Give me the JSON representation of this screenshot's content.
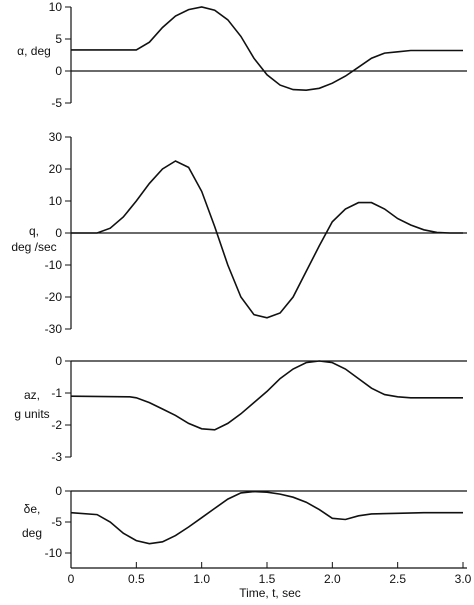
{
  "chart_data": [
    {
      "type": "line",
      "ylabel_lines": [
        "α, deg"
      ],
      "ylim": [
        -5,
        10
      ],
      "yticks": [
        10,
        5,
        0,
        -5
      ],
      "zero_line": 0,
      "series": [
        {
          "x": [
            0,
            0.3,
            0.5,
            0.6,
            0.7,
            0.8,
            0.9,
            1.0,
            1.1,
            1.2,
            1.3,
            1.4,
            1.5,
            1.6,
            1.7,
            1.8,
            1.9,
            2.0,
            2.1,
            2.2,
            2.3,
            2.4,
            2.5,
            2.6,
            2.8,
            3.0
          ],
          "y": [
            3.3,
            3.3,
            3.3,
            4.5,
            6.8,
            8.6,
            9.6,
            10.0,
            9.5,
            8.0,
            5.4,
            2.0,
            -0.6,
            -2.2,
            -2.9,
            -3.0,
            -2.7,
            -1.9,
            -0.8,
            0.6,
            2.0,
            2.8,
            3.0,
            3.2,
            3.2,
            3.2
          ]
        }
      ]
    },
    {
      "type": "line",
      "ylabel_lines": [
        "q,",
        "deg /sec"
      ],
      "ylim": [
        -30,
        30
      ],
      "yticks": [
        30,
        20,
        10,
        0,
        -10,
        -20,
        -30
      ],
      "zero_line": 0,
      "series": [
        {
          "x": [
            0,
            0.2,
            0.3,
            0.4,
            0.5,
            0.6,
            0.7,
            0.8,
            0.9,
            1.0,
            1.1,
            1.2,
            1.3,
            1.4,
            1.5,
            1.6,
            1.7,
            1.8,
            1.9,
            2.0,
            2.1,
            2.2,
            2.3,
            2.4,
            2.5,
            2.6,
            2.7,
            2.8,
            2.9,
            3.0
          ],
          "y": [
            0,
            0,
            1.5,
            5,
            10,
            15.5,
            20,
            22.5,
            20.5,
            13,
            2,
            -10,
            -20,
            -25.5,
            -26.5,
            -25,
            -20,
            -12,
            -4,
            3.5,
            7.5,
            9.5,
            9.5,
            7.5,
            4.5,
            2.5,
            1,
            0.2,
            0,
            0
          ]
        }
      ]
    },
    {
      "type": "line",
      "ylabel_lines": [
        "az,",
        "g units"
      ],
      "ylim": [
        -3,
        0
      ],
      "yticks": [
        0,
        -1,
        -2,
        -3
      ],
      "zero_line": 0,
      "series": [
        {
          "x": [
            0,
            0.45,
            0.5,
            0.6,
            0.7,
            0.8,
            0.9,
            1.0,
            1.1,
            1.2,
            1.3,
            1.4,
            1.5,
            1.6,
            1.7,
            1.8,
            1.9,
            2.0,
            2.1,
            2.2,
            2.3,
            2.4,
            2.5,
            2.6,
            2.8,
            3.0
          ],
          "y": [
            -1.1,
            -1.12,
            -1.15,
            -1.3,
            -1.5,
            -1.7,
            -1.95,
            -2.12,
            -2.15,
            -1.95,
            -1.65,
            -1.3,
            -0.95,
            -0.55,
            -0.25,
            -0.05,
            0,
            -0.05,
            -0.25,
            -0.55,
            -0.85,
            -1.05,
            -1.12,
            -1.15,
            -1.15,
            -1.15
          ]
        }
      ]
    },
    {
      "type": "line",
      "ylabel_lines": [
        "δe,",
        "deg"
      ],
      "ylim": [
        -10,
        0
      ],
      "yticks": [
        0,
        -5,
        -10
      ],
      "zero_line": 0,
      "xlim": [
        0,
        3.0
      ],
      "xticks": [
        "0",
        "0.5",
        "1.0",
        "1.5",
        "2.0",
        "2.5",
        "3.0"
      ],
      "xlabel": "Time, t, sec",
      "series": [
        {
          "x": [
            0,
            0.2,
            0.3,
            0.4,
            0.5,
            0.6,
            0.7,
            0.8,
            0.9,
            1.0,
            1.1,
            1.2,
            1.3,
            1.4,
            1.5,
            1.6,
            1.7,
            1.8,
            1.9,
            2.0,
            2.1,
            2.2,
            2.3,
            2.5,
            2.7,
            3.0
          ],
          "y": [
            -3.5,
            -3.8,
            -5.0,
            -6.8,
            -8.0,
            -8.5,
            -8.2,
            -7.2,
            -5.8,
            -4.3,
            -2.8,
            -1.3,
            -0.3,
            -0.1,
            -0.2,
            -0.5,
            -1.0,
            -1.8,
            -3.0,
            -4.4,
            -4.6,
            -4.0,
            -3.7,
            -3.6,
            -3.5,
            -3.5
          ]
        }
      ]
    }
  ]
}
